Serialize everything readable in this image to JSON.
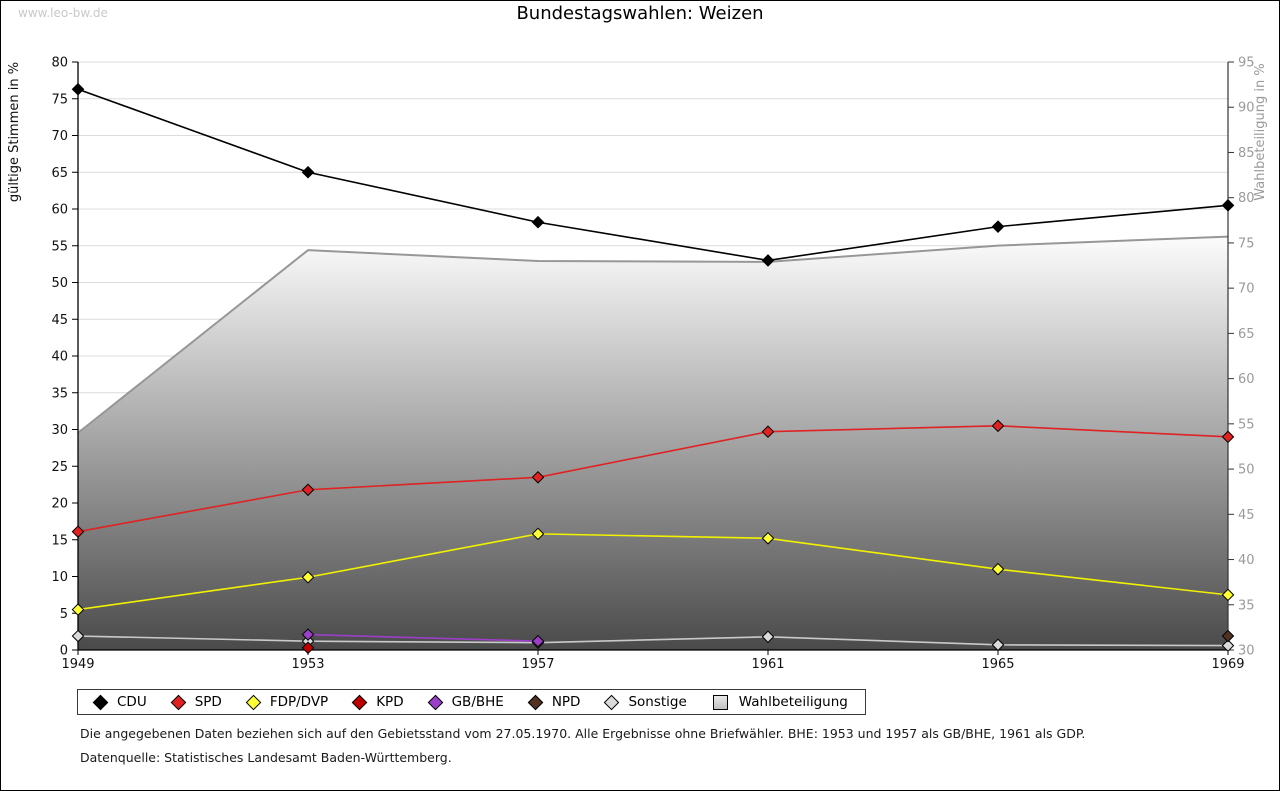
{
  "watermark": "www.leo-bw.de",
  "title": "Bundestagswahlen: Weizen",
  "chart_data": {
    "type": "line",
    "categories": [
      "1949",
      "1953",
      "1957",
      "1961",
      "1965",
      "1969"
    ],
    "left_axis": {
      "label": "gültige Stimmen in %",
      "min": 0,
      "max": 80,
      "step": 5
    },
    "right_axis": {
      "label": "Wahlbeteiligung in %",
      "min": 30,
      "max": 95,
      "step": 5
    },
    "grid": true,
    "series": [
      {
        "name": "CDU",
        "color": "#000000",
        "marker_fill": "#000000",
        "values": [
          76.3,
          65.0,
          58.2,
          53.0,
          57.6,
          60.5
        ]
      },
      {
        "name": "SPD",
        "color": "#e02222",
        "marker_fill": "#e02222",
        "values": [
          16.1,
          21.8,
          23.5,
          29.7,
          30.5,
          29.0
        ]
      },
      {
        "name": "FDP/DVP",
        "color": "#f2f200",
        "marker_fill": "#ffff33",
        "values": [
          5.5,
          9.9,
          15.8,
          15.2,
          11.0,
          7.5
        ]
      },
      {
        "name": "KPD",
        "color": "#c00000",
        "marker_fill": "#c00000",
        "values": [
          null,
          0.3,
          null,
          null,
          null,
          null
        ]
      },
      {
        "name": "GB/BHE",
        "color": "#9b3fc8",
        "marker_fill": "#9b3fc8",
        "values": [
          null,
          2.1,
          1.2,
          null,
          null,
          null
        ]
      },
      {
        "name": "NPD",
        "color": "#523022",
        "marker_fill": "#523022",
        "values": [
          null,
          null,
          null,
          null,
          null,
          1.9
        ]
      },
      {
        "name": "Sonstige",
        "color": "#c9c9c9",
        "marker_fill": "#dadada",
        "values": [
          1.9,
          1.2,
          1.0,
          1.8,
          0.7,
          0.6
        ]
      }
    ],
    "turnout": {
      "name": "Wahlbeteiligung",
      "axis": "right",
      "line_color": "#979797",
      "gradient_top": "#fdfdfd",
      "gradient_bottom": "#4a4a4a",
      "values": [
        54.0,
        74.2,
        73.0,
        72.9,
        74.7,
        75.7
      ]
    }
  },
  "legend": {
    "items": [
      {
        "label": "CDU",
        "color": "#000000",
        "shape": "diamond"
      },
      {
        "label": "SPD",
        "color": "#e02222",
        "shape": "diamond"
      },
      {
        "label": "FDP/DVP",
        "color": "#ffff33",
        "shape": "diamond"
      },
      {
        "label": "KPD",
        "color": "#c00000",
        "shape": "diamond"
      },
      {
        "label": "GB/BHE",
        "color": "#9b3fc8",
        "shape": "diamond"
      },
      {
        "label": "NPD",
        "color": "#523022",
        "shape": "diamond"
      },
      {
        "label": "Sonstige",
        "color": "#dadada",
        "shape": "diamond"
      },
      {
        "label": "Wahlbeteiligung",
        "color": "#cfcfcf",
        "shape": "square"
      }
    ]
  },
  "footnotes": [
    "Die angegebenen Daten beziehen sich auf den Gebietsstand vom 27.05.1970. Alle Ergebnisse ohne Briefwähler. BHE: 1953 und 1957 als GB/BHE, 1961 als GDP.",
    "Datenquelle: Statistisches Landesamt Baden-Württemberg."
  ]
}
